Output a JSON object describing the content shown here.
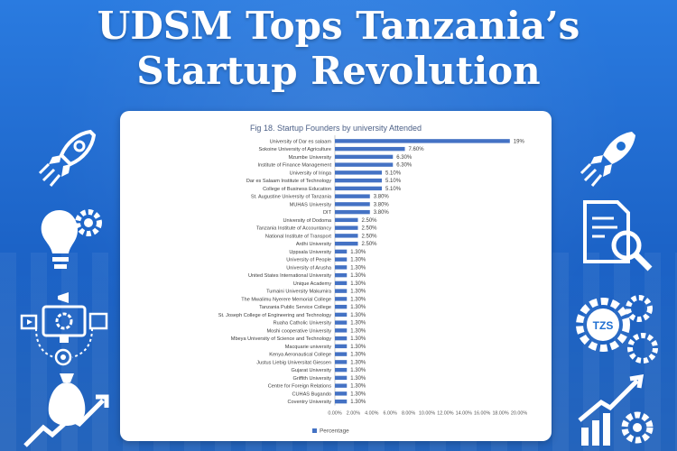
{
  "headline": {
    "line1": "UDSM Tops Tanzania’s",
    "line2": "Startup Revolution"
  },
  "colors": {
    "background": "#1f6fd1",
    "bar": "#4472c4",
    "icon": "#ffffff"
  },
  "icons": {
    "left": [
      "rocket-icon",
      "lightbulb-gear-icon",
      "digital-marketing-icon",
      "money-bag-growth-icon"
    ],
    "right": [
      "rocket-icon",
      "document-search-icon",
      "tzs-gears-icon",
      "growth-chart-gear-icon"
    ],
    "tzs_label": "TZS"
  },
  "chart_data": {
    "type": "bar",
    "orientation": "horizontal",
    "title": "Fig 18. Startup Founders by university Attended",
    "categories": [
      "University of Dar es salaam",
      "Sokoine University of Agriculture",
      "Mzumbe University",
      "Institute of Finance Management",
      "University of Iringa",
      "Dar es Salaam Institute of Technology",
      "College of Business Education",
      "St. Augustine University of Tanzania",
      "MUHAS University",
      "DIT",
      "University of Dodoma",
      "Tanzania Institute of Accountancy",
      "National Institute of Transport",
      "Ardhi University",
      "Uppsala University",
      "University of People",
      "University of Arusha",
      "United States International University",
      "Unique Academy",
      "Tumaini University Makumira",
      "The Mwalimu Nyerere Memorial College",
      "Tanzania Public Service College",
      "St. Joseph College of Engineering and Technology",
      "Ruaha Catholic University",
      "Moshi cooperative University",
      "Mbeya University of Science and Technology",
      "Macquarie university",
      "Kenya Aeronautical College",
      "Justus Liebig Universitat Giessen",
      "Gujarat University",
      "Griffith University",
      "Centre for Foreign Relations",
      "CUHAS Bugando",
      "Coventry University"
    ],
    "values": [
      19,
      7.6,
      6.3,
      6.3,
      5.1,
      5.1,
      5.1,
      3.8,
      3.8,
      3.8,
      2.5,
      2.5,
      2.5,
      2.5,
      1.3,
      1.3,
      1.3,
      1.3,
      1.3,
      1.3,
      1.3,
      1.3,
      1.3,
      1.3,
      1.3,
      1.3,
      1.3,
      1.3,
      1.3,
      1.3,
      1.3,
      1.3,
      1.3,
      1.3
    ],
    "data_labels": [
      "19%",
      "7.60%",
      "6.30%",
      "6.30%",
      "5.10%",
      "5.10%",
      "5.10%",
      "3.80%",
      "3.80%",
      "3.80%",
      "2.50%",
      "2.50%",
      "2.50%",
      "2.50%",
      "1.30%",
      "1.30%",
      "1.30%",
      "1.30%",
      "1.30%",
      "1.30%",
      "1.30%",
      "1.30%",
      "1.30%",
      "1.30%",
      "1.30%",
      "1.30%",
      "1.30%",
      "1.30%",
      "1.30%",
      "1.30%",
      "1.30%",
      "1.30%",
      "1.30%",
      "1.30%"
    ],
    "xlim": [
      0,
      20
    ],
    "xticks": [
      0,
      2,
      4,
      6,
      8,
      10,
      12,
      14,
      16,
      18,
      20
    ],
    "xtick_labels": [
      "0.00%",
      "2.00%",
      "4.00%",
      "6.00%",
      "8.00%",
      "10.00%",
      "12.00%",
      "14.00%",
      "16.00%",
      "18.00%",
      "20.00%"
    ],
    "legend": "Percentage",
    "legend_position": "bottom",
    "grid": false
  }
}
